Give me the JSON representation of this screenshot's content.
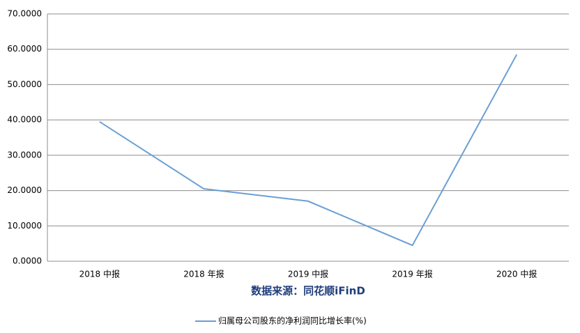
{
  "chart_data": {
    "type": "line",
    "categories": [
      "2018 中报",
      "2018 年报",
      "2019 中报",
      "2019 年报",
      "2020 中报"
    ],
    "series": [
      {
        "name": "归属母公司股东的净利润同比增长率(%)",
        "color": "#6a9fd4",
        "values": [
          39.5,
          20.5,
          17.0,
          4.5,
          58.5
        ]
      }
    ],
    "ylim": [
      0,
      70
    ],
    "yticks": [
      {
        "value": 0,
        "label": "0.0000"
      },
      {
        "value": 10,
        "label": "10.0000"
      },
      {
        "value": 20,
        "label": "20.0000"
      },
      {
        "value": 30,
        "label": "30.0000"
      },
      {
        "value": 40,
        "label": "40.0000"
      },
      {
        "value": 50,
        "label": "50.0000"
      },
      {
        "value": 60,
        "label": "60.0000"
      },
      {
        "value": 70,
        "label": "70.0000"
      }
    ],
    "grid": true,
    "xlabel": "数据来源：同花顺iFinD",
    "legend": "bottom"
  }
}
